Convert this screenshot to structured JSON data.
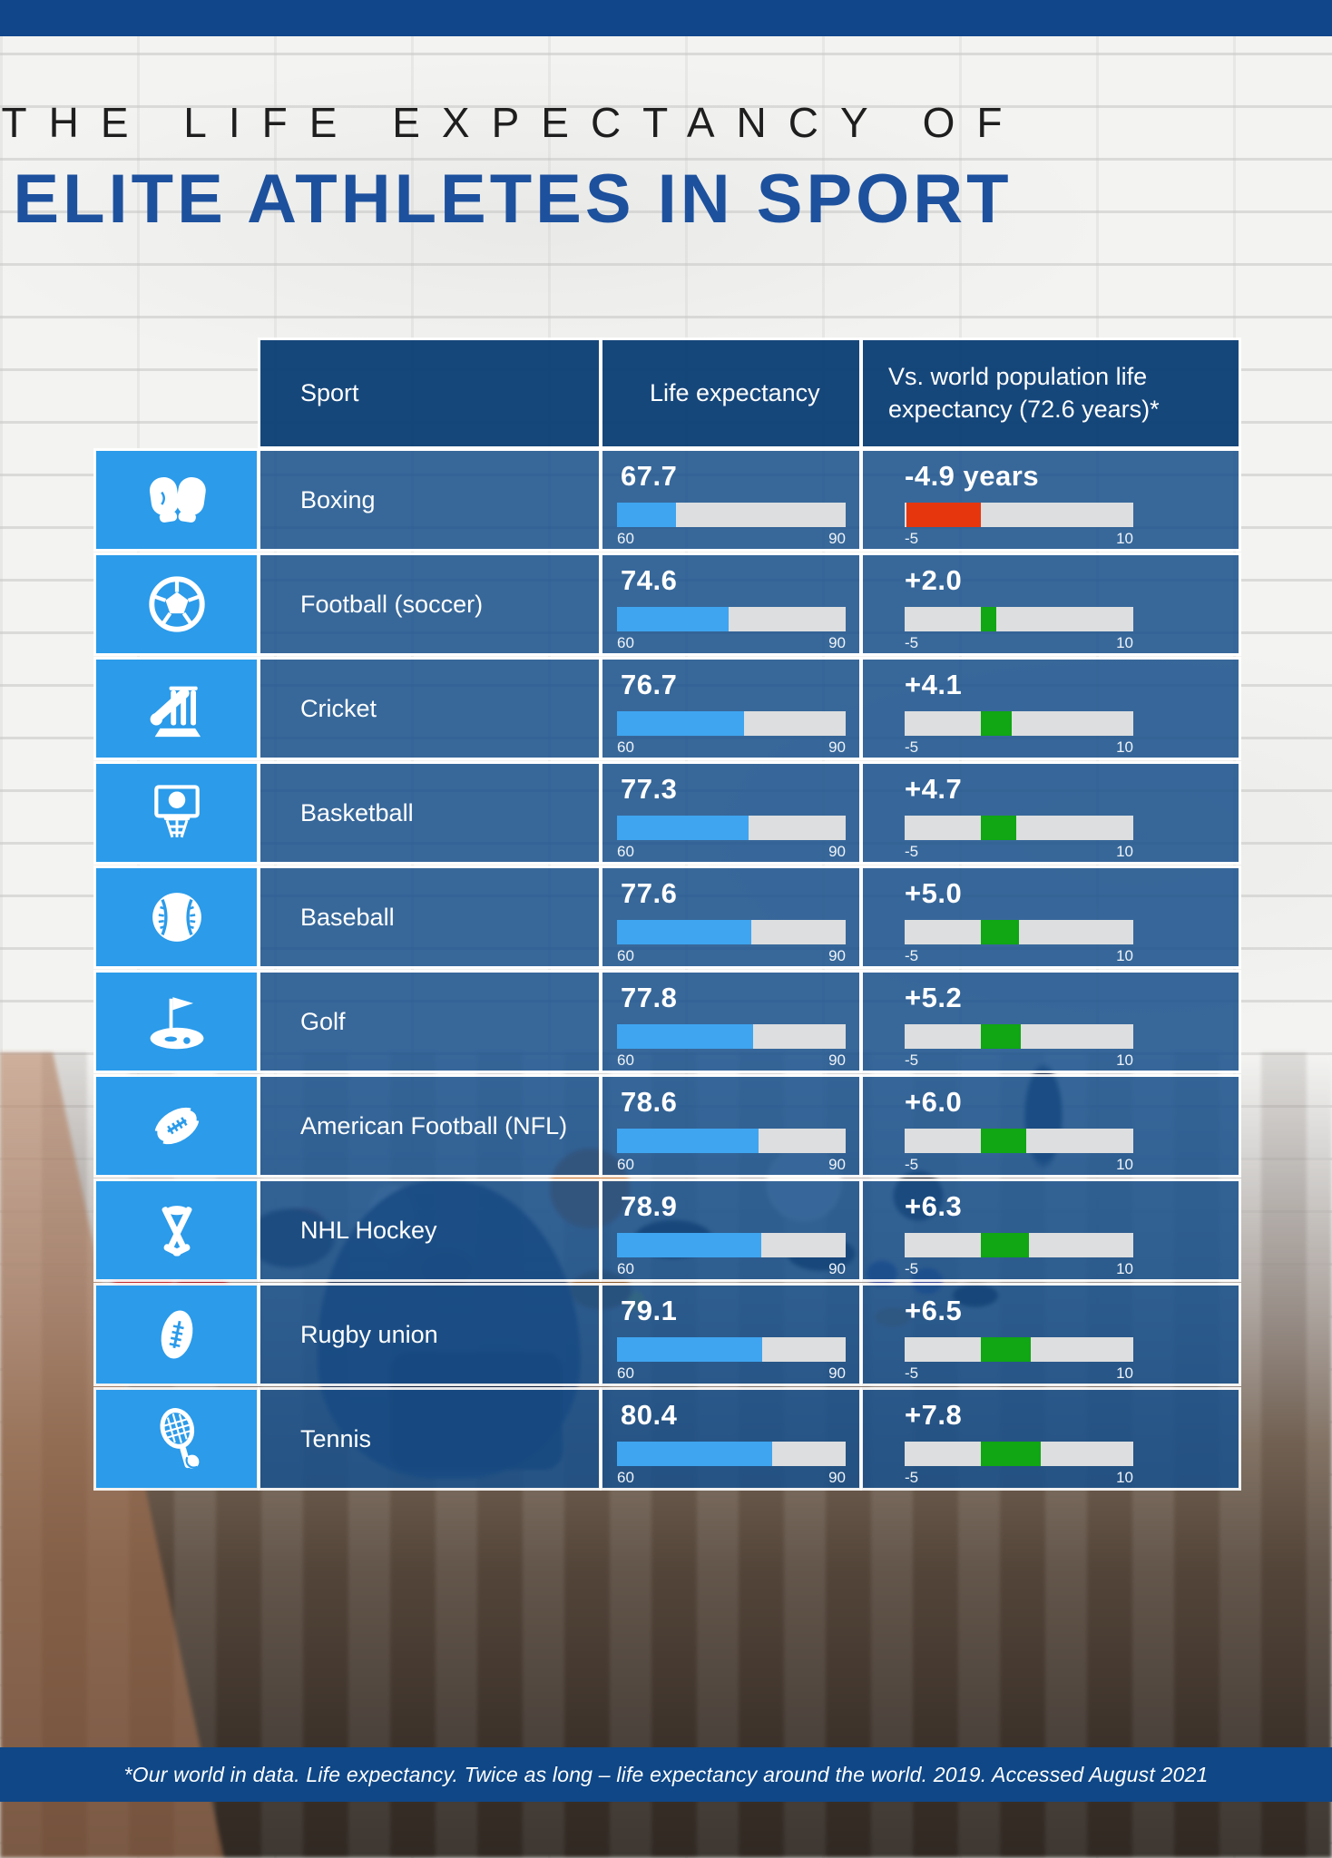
{
  "page": {
    "title_line1": "THE LIFE EXPECTANCY OF",
    "title_line2": "ELITE ATHLETES IN SPORT",
    "footer_note": "*Our world in data. Life expectancy. Twice as long – life expectancy around the world. 2019. Accessed August 2021"
  },
  "table": {
    "headers": {
      "sport": "Sport",
      "life": "Life expectancy",
      "vs": "Vs. world population life expectancy (72.6 years)*"
    },
    "life_axis": {
      "min": 60,
      "max": 90,
      "min_label": "60",
      "max_label": "90"
    },
    "vs_axis": {
      "min": -5,
      "max": 10,
      "min_label": "-5",
      "max_label": "10"
    },
    "rows": [
      {
        "sport": "Boxing",
        "icon": "boxing-gloves-icon",
        "life_label": "67.7",
        "life_value": 67.7,
        "vs_label": "-4.9 years",
        "vs_value": -4.9
      },
      {
        "sport": "Football (soccer)",
        "icon": "soccer-ball-icon",
        "life_label": "74.6",
        "life_value": 74.6,
        "vs_label": "+2.0",
        "vs_value": 2.0
      },
      {
        "sport": "Cricket",
        "icon": "cricket-icon",
        "life_label": "76.7",
        "life_value": 76.7,
        "vs_label": "+4.1",
        "vs_value": 4.1
      },
      {
        "sport": "Basketball",
        "icon": "basketball-hoop-icon",
        "life_label": "77.3",
        "life_value": 77.3,
        "vs_label": "+4.7",
        "vs_value": 4.7
      },
      {
        "sport": "Baseball",
        "icon": "baseball-icon",
        "life_label": "77.6",
        "life_value": 77.6,
        "vs_label": "+5.0",
        "vs_value": 5.0
      },
      {
        "sport": "Golf",
        "icon": "golf-icon",
        "life_label": "77.8",
        "life_value": 77.8,
        "vs_label": "+5.2",
        "vs_value": 5.2
      },
      {
        "sport": "American Football (NFL)",
        "icon": "american-football-icon",
        "life_label": "78.6",
        "life_value": 78.6,
        "vs_label": "+6.0",
        "vs_value": 6.0
      },
      {
        "sport": "NHL Hockey",
        "icon": "hockey-sticks-icon",
        "life_label": "78.9",
        "life_value": 78.9,
        "vs_label": "+6.3",
        "vs_value": 6.3
      },
      {
        "sport": "Rugby union",
        "icon": "rugby-ball-icon",
        "life_label": "79.1",
        "life_value": 79.1,
        "vs_label": "+6.5",
        "vs_value": 6.5
      },
      {
        "sport": "Tennis",
        "icon": "tennis-racket-icon",
        "life_label": "80.4",
        "life_value": 80.4,
        "vs_label": "+7.8",
        "vs_value": 7.8
      }
    ]
  },
  "colors": {
    "accent_blue": "#2b9bea",
    "bar_blue": "#3fa5f0",
    "bar_gray": "#dddedf",
    "negative_red": "#e6360e",
    "positive_green": "#10a614",
    "header_blue": "#0d4076",
    "row_blue": "#19508c",
    "title_blue": "#1d519e"
  },
  "chart_data": {
    "type": "bar",
    "title": "The Life Expectancy of Elite Athletes in Sport",
    "categories": [
      "Boxing",
      "Football (soccer)",
      "Cricket",
      "Basketball",
      "Baseball",
      "Golf",
      "American Football (NFL)",
      "NHL Hockey",
      "Rugby union",
      "Tennis"
    ],
    "series": [
      {
        "name": "Life expectancy",
        "values": [
          67.7,
          74.6,
          76.7,
          77.3,
          77.6,
          77.8,
          78.6,
          78.9,
          79.1,
          80.4
        ],
        "axis_range": [
          60,
          90
        ]
      },
      {
        "name": "Vs. world population life expectancy (72.6 years)",
        "values": [
          -4.9,
          2.0,
          4.1,
          4.7,
          5.0,
          5.2,
          6.0,
          6.3,
          6.5,
          7.8
        ],
        "axis_range": [
          -5,
          10
        ]
      }
    ],
    "world_population_life_expectancy": 72.6,
    "grid": false,
    "legend_position": "none",
    "source_note": "*Our world in data. Life expectancy. Twice as long – life expectancy around the world. 2019. Accessed August 2021"
  }
}
